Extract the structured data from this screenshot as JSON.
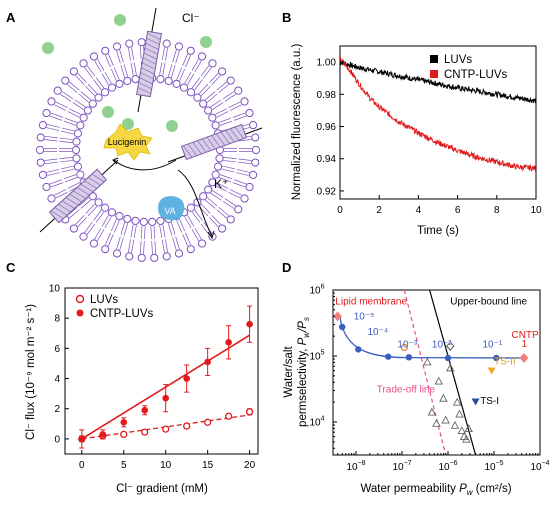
{
  "panel_labels": [
    "A",
    "B",
    "C",
    "D"
  ],
  "panel_a": {
    "ion_label": "Cl⁻",
    "dye_label": "Lucigenin",
    "ionophore_label": "VA",
    "cation_label": "K⁺"
  },
  "chart_data": [
    {
      "panel": "B",
      "type": "line",
      "xlabel": "Time (s)",
      "ylabel": "Normalized fluorescence (a.u.)",
      "xlim": [
        0,
        10
      ],
      "ylim": [
        0.915,
        1.01
      ],
      "xticks": [
        "0",
        "2",
        "4",
        "6",
        "8",
        "10"
      ],
      "yticks": [
        "0.92",
        "0.94",
        "0.96",
        "0.98",
        "1.00"
      ],
      "legend_position": "top-right",
      "series": [
        {
          "name": "LUVs",
          "color": "#000000",
          "x": [
            0,
            1,
            2,
            3,
            4,
            5,
            6,
            7,
            8,
            9,
            10
          ],
          "values": [
            1.0,
            0.9965,
            0.994,
            0.9915,
            0.989,
            0.9865,
            0.984,
            0.982,
            0.98,
            0.978,
            0.976
          ]
        },
        {
          "name": "CNTP-LUVs",
          "color": "#e31a1c",
          "x": [
            0,
            0.5,
            1,
            1.5,
            2,
            3,
            4,
            5,
            6,
            7,
            8,
            9,
            10
          ],
          "values": [
            1.002,
            0.995,
            0.986,
            0.978,
            0.972,
            0.963,
            0.956,
            0.95,
            0.945,
            0.941,
            0.938,
            0.935,
            0.934
          ]
        }
      ]
    },
    {
      "panel": "C",
      "type": "scatter",
      "xlabel": "Cl⁻ gradient (mM)",
      "ylabel": "Cl⁻ flux (10⁻⁹ mol m⁻² s⁻¹)",
      "xlim": [
        -2,
        21
      ],
      "ylim": [
        -1,
        10
      ],
      "xticks": [
        "0",
        "5",
        "10",
        "15",
        "20"
      ],
      "yticks": [
        "0",
        "2",
        "4",
        "6",
        "8",
        "10"
      ],
      "legend_position": "top-left",
      "series": [
        {
          "name": "LUVs",
          "color": "#e31a1c",
          "marker": "open-circle",
          "fit": "dashed",
          "x": [
            0,
            2.5,
            5,
            7.5,
            10,
            12.5,
            15,
            17.5,
            20
          ],
          "values": [
            0.0,
            0.2,
            0.3,
            0.45,
            0.65,
            0.85,
            1.1,
            1.5,
            1.8
          ],
          "errors": [
            0.2,
            0.1,
            0.1,
            0.1,
            0.15,
            0.15,
            0.15,
            0.15,
            0.2
          ]
        },
        {
          "name": "CNTP-LUVs",
          "color": "#e31a1c",
          "marker": "filled-circle",
          "fit": "solid",
          "x": [
            0,
            2.5,
            5,
            7.5,
            10,
            12.5,
            15,
            17.5,
            20
          ],
          "values": [
            0.0,
            0.3,
            1.1,
            1.9,
            2.7,
            4.0,
            5.1,
            6.4,
            7.6
          ],
          "errors": [
            0.6,
            0.3,
            0.3,
            0.3,
            0.9,
            0.9,
            0.9,
            1.1,
            1.2
          ]
        }
      ]
    },
    {
      "panel": "D",
      "type": "scatter",
      "xlabel": "Water permeability Pᵥᵥ (cm²/s)",
      "xlabel_text": "Water permeability",
      "xlabel_symbol": "P",
      "xlabel_sub": "w",
      "xlabel_unit": " (cm²/s)",
      "ylabel_lines": [
        "Water/salt",
        "permselectivity, "
      ],
      "ylabel_symbol": "P",
      "ylabel_sub1": "w",
      "ylabel_sym2": "/P",
      "ylabel_sub2": "s",
      "x_scale": "log",
      "y_scale": "log",
      "xlim_log": [
        -8.5,
        -4
      ],
      "ylim_log": [
        3.5,
        6
      ],
      "xticks": [
        {
          "base": "10",
          "exp": "−8",
          "log": -8
        },
        {
          "base": "10",
          "exp": "−7",
          "log": -7
        },
        {
          "base": "10",
          "exp": "−6",
          "log": -6
        },
        {
          "base": "10",
          "exp": "−5",
          "log": -5
        },
        {
          "base": "10",
          "exp": "−4",
          "log": -4
        }
      ],
      "yticks": [
        {
          "base": "10",
          "exp": "4",
          "log": 4
        },
        {
          "base": "10",
          "exp": "5",
          "log": 5
        },
        {
          "base": "10",
          "exp": "6",
          "log": 6
        }
      ],
      "annotations": [
        "Lipid membrane",
        "Upper-bound line",
        "CNTP",
        "1",
        "TS-II",
        "TS-I",
        "Trade-off line"
      ],
      "curve_labels": [
        {
          "text": "10⁻⁵",
          "x_log": -8.05,
          "y_log": 5.55
        },
        {
          "text": "10⁻⁴",
          "x_log": -7.75,
          "y_log": 5.32
        },
        {
          "text": "10⁻³",
          "x_log": -7.1,
          "y_log": 5.13
        },
        {
          "text": "10⁻²",
          "x_log": -6.35,
          "y_log": 5.13
        },
        {
          "text": "10⁻¹",
          "x_log": -5.25,
          "y_log": 5.13
        }
      ],
      "series": [
        {
          "name": "Lipid membrane",
          "color": "#f08080",
          "marker": "diamond",
          "x_log": [
            -8.4
          ],
          "y_log": [
            5.6
          ]
        },
        {
          "name": "CNTP",
          "color": "#f08080",
          "marker": "diamond",
          "x_log": [
            -4.35
          ],
          "y_log": [
            4.97
          ]
        },
        {
          "name": "Model curve points",
          "color": "#3b5fc0",
          "marker": "filled-circle",
          "x_log": [
            -8.3,
            -7.95,
            -7.3,
            -6.85,
            -6.0,
            -4.95
          ],
          "y_log": [
            5.44,
            5.1,
            4.99,
            4.98,
            4.97,
            4.97
          ]
        },
        {
          "name": "Open circle",
          "color": "#e07b39",
          "marker": "open-circle",
          "x_log": [
            -6.95
          ],
          "y_log": [
            5.13
          ]
        },
        {
          "name": "Open diamond",
          "color": "#555555",
          "marker": "open-diamond",
          "x_log": [
            -5.95
          ],
          "y_log": [
            5.15
          ]
        },
        {
          "name": "TS-II",
          "color": "#f5a623",
          "marker": "down-triangle",
          "x_log": [
            -5.05
          ],
          "y_log": [
            4.78
          ]
        },
        {
          "name": "TS-I",
          "color": "#2a4aa0",
          "marker": "down-triangle",
          "x_log": [
            -5.4
          ],
          "y_log": [
            4.31
          ]
        },
        {
          "name": "Other membranes",
          "color": "#666666",
          "marker": "open-triangle",
          "x_log": [
            -6.45,
            -6.2,
            -5.95,
            -6.1,
            -6.35,
            -6.05,
            -5.85,
            -5.7,
            -5.55,
            -6.25,
            -5.75,
            -5.65,
            -5.6,
            -5.8
          ],
          "y_log": [
            4.91,
            4.62,
            4.82,
            4.36,
            4.15,
            4.03,
            3.95,
            3.87,
            3.9,
            3.98,
            4.12,
            3.78,
            3.74,
            4.3
          ]
        }
      ]
    }
  ]
}
